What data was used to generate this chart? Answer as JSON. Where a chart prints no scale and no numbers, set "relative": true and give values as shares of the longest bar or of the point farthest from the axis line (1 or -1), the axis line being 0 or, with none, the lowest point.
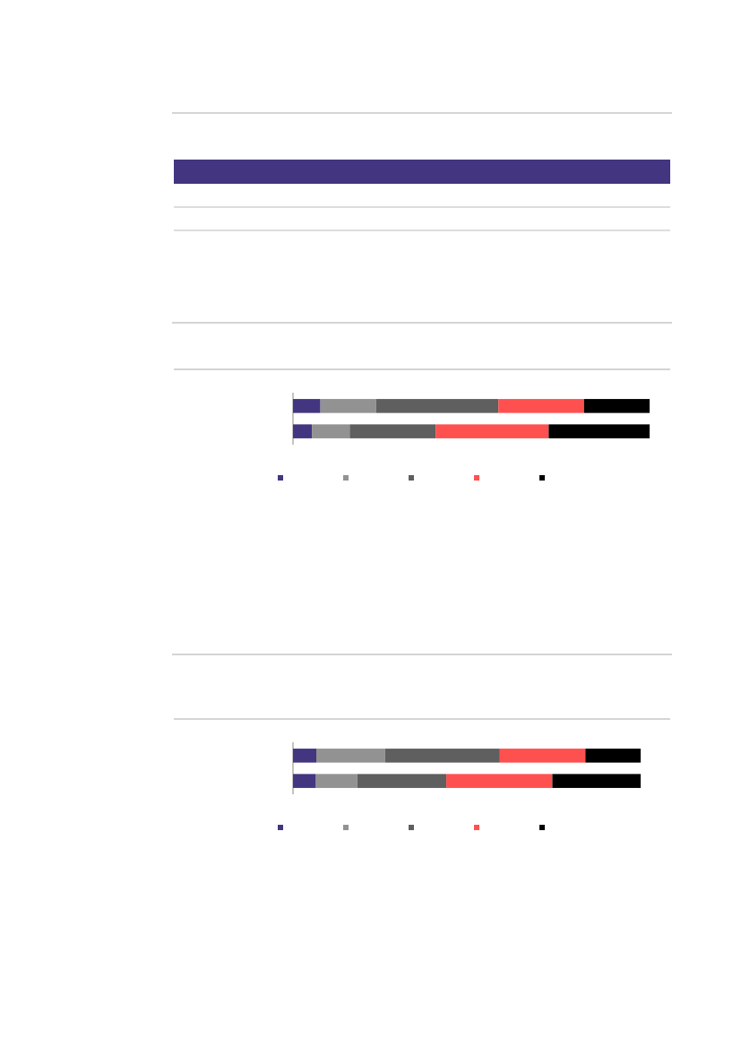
{
  "chart_data": [
    {
      "type": "bar",
      "orientation": "horizontal",
      "stacked": true,
      "relative": true,
      "categories": [
        null,
        null
      ],
      "series": [
        {
          "color": "#433580",
          "values": [
            0.077,
            0.053
          ]
        },
        {
          "color": "#929292",
          "values": [
            0.156,
            0.106
          ]
        },
        {
          "color": "#5f5f5f",
          "values": [
            0.343,
            0.241
          ]
        },
        {
          "color": "#ff5050",
          "values": [
            0.24,
            0.317
          ]
        },
        {
          "color": "#000000",
          "values": [
            0.184,
            0.283
          ]
        }
      ]
    },
    {
      "type": "bar",
      "orientation": "horizontal",
      "stacked": true,
      "relative": true,
      "categories": [
        null,
        null
      ],
      "series": [
        {
          "color": "#433580",
          "values": [
            0.067,
            0.066
          ]
        },
        {
          "color": "#929292",
          "values": [
            0.198,
            0.119
          ]
        },
        {
          "color": "#5f5f5f",
          "values": [
            0.33,
            0.256
          ]
        },
        {
          "color": "#ff5050",
          "values": [
            0.246,
            0.305
          ]
        },
        {
          "color": "#000000",
          "values": [
            0.159,
            0.254
          ]
        }
      ]
    }
  ]
}
